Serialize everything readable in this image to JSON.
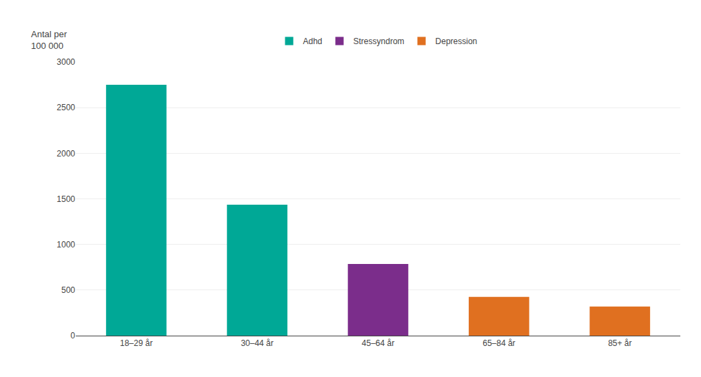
{
  "chart_data": {
    "type": "bar",
    "categories": [
      "18–29 år",
      "30–44 år",
      "45–64 år",
      "65–84 år",
      "85+ år"
    ],
    "series": [
      {
        "name": "Adhd",
        "color": "#00a896",
        "values": [
          2750,
          1435,
          null,
          null,
          null
        ]
      },
      {
        "name": "Stressyndrom",
        "color": "#7b2d8b",
        "values": [
          null,
          null,
          785,
          null,
          null
        ]
      },
      {
        "name": "Depression",
        "color": "#e07020",
        "values": [
          null,
          null,
          null,
          425,
          320
        ]
      }
    ],
    "ylabel": "Antal per\n100 000",
    "ylim": [
      0,
      3000
    ],
    "yticks": [
      0,
      500,
      1000,
      1500,
      2000,
      2500,
      3000
    ],
    "grid": true
  }
}
